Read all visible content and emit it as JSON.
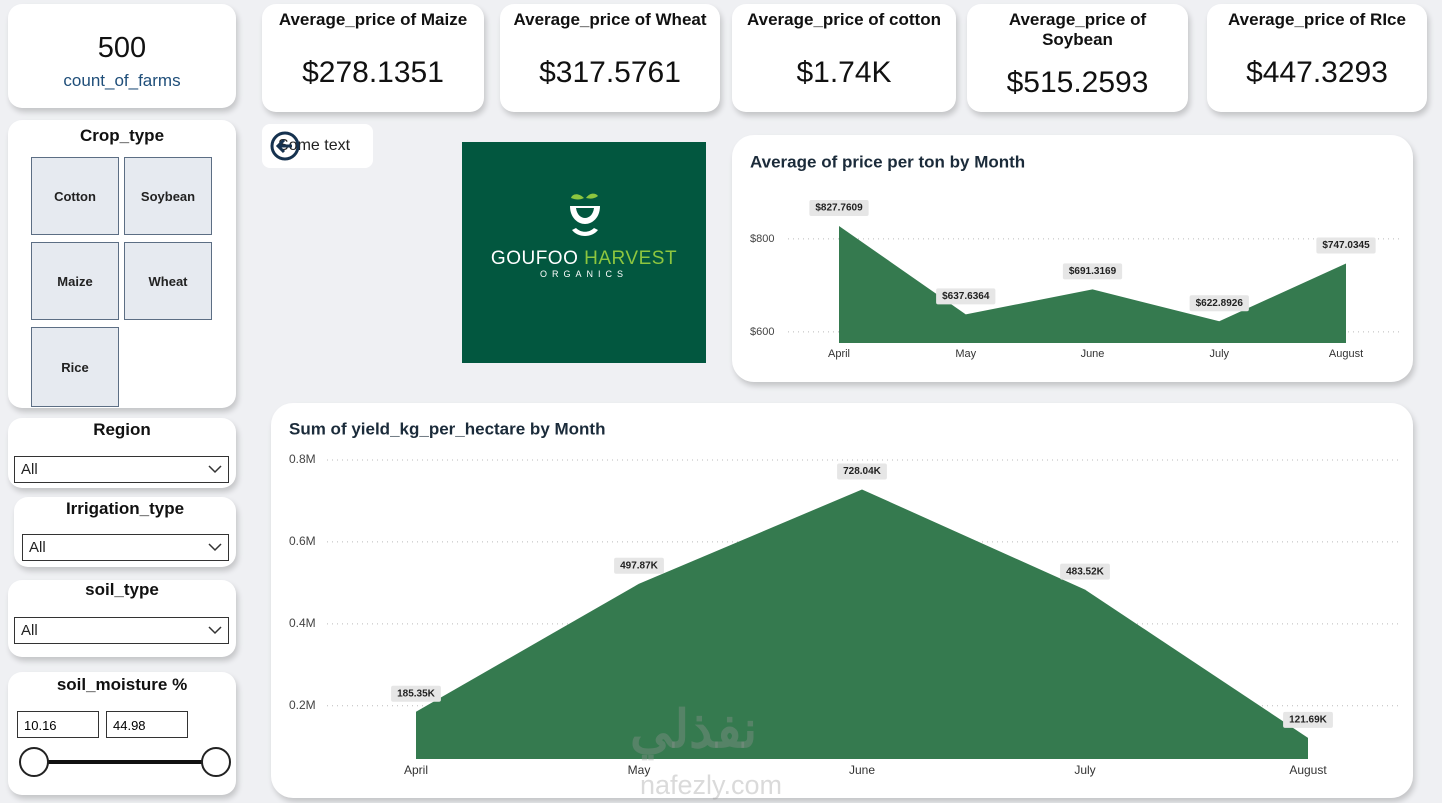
{
  "farm_count": {
    "value": 500,
    "label": "count_of_farms"
  },
  "price_cards": [
    {
      "title": "Average_price of Maize",
      "value": "$278.1351"
    },
    {
      "title": "Average_price of Wheat",
      "value": "$317.5761"
    },
    {
      "title": "Average_price of cotton",
      "value": "$1.74K"
    },
    {
      "title": "Average_price of Soybean",
      "value": "$515.2593"
    },
    {
      "title": "Average_price of RIce",
      "value": "$447.3293"
    }
  ],
  "slicers": {
    "crop_type": {
      "title": "Crop_type",
      "options": [
        "Cotton",
        "Soybean",
        "Maize",
        "Wheat",
        "Rice"
      ]
    },
    "region": {
      "title": "Region",
      "selected": "All"
    },
    "irrigation_type": {
      "title": "Irrigation_type",
      "selected": "All"
    },
    "soil_type": {
      "title": "soil_type",
      "selected": "All"
    },
    "soil_moisture": {
      "title": "soil_moisture %",
      "min": 10.16,
      "max": 44.98
    }
  },
  "button": {
    "label": "Some text"
  },
  "logo": {
    "name_1": "GOUFOO",
    "name_2": "HARVEST",
    "tagline": "ORGANICS"
  },
  "watermark": {
    "arabic": "نفذلي",
    "latin": "nafezly.com"
  },
  "chart_data": [
    {
      "type": "area",
      "title": "Average of price per ton by Month",
      "categories": [
        "April",
        "May",
        "June",
        "July",
        "August"
      ],
      "values": [
        827.7609,
        637.6364,
        691.3169,
        622.8926,
        747.0345
      ],
      "value_labels": [
        "$827.7609",
        "$637.6364",
        "$691.3169",
        "$622.8926",
        "$747.0345"
      ],
      "color": "#357a4f",
      "ylim": [
        576,
        860
      ],
      "yticks": [
        {
          "value": 600,
          "label": "$600"
        },
        {
          "value": 800,
          "label": "$800"
        }
      ],
      "grid": true
    },
    {
      "type": "area",
      "title": "Sum of yield_kg_per_hectare by Month",
      "categories": [
        "April",
        "May",
        "June",
        "July",
        "August"
      ],
      "values": [
        185350,
        497870,
        728040,
        483520,
        121690
      ],
      "value_labels": [
        "185.35K",
        "497.87K",
        "728.04K",
        "483.52K",
        "121.69K"
      ],
      "color": "#357a4f",
      "ylim": [
        70000,
        800000
      ],
      "yticks": [
        {
          "value": 200000,
          "label": "0.2M"
        },
        {
          "value": 400000,
          "label": "0.4M"
        },
        {
          "value": 600000,
          "label": "0.6M"
        },
        {
          "value": 800000,
          "label": "0.8M"
        }
      ],
      "grid": true
    }
  ]
}
